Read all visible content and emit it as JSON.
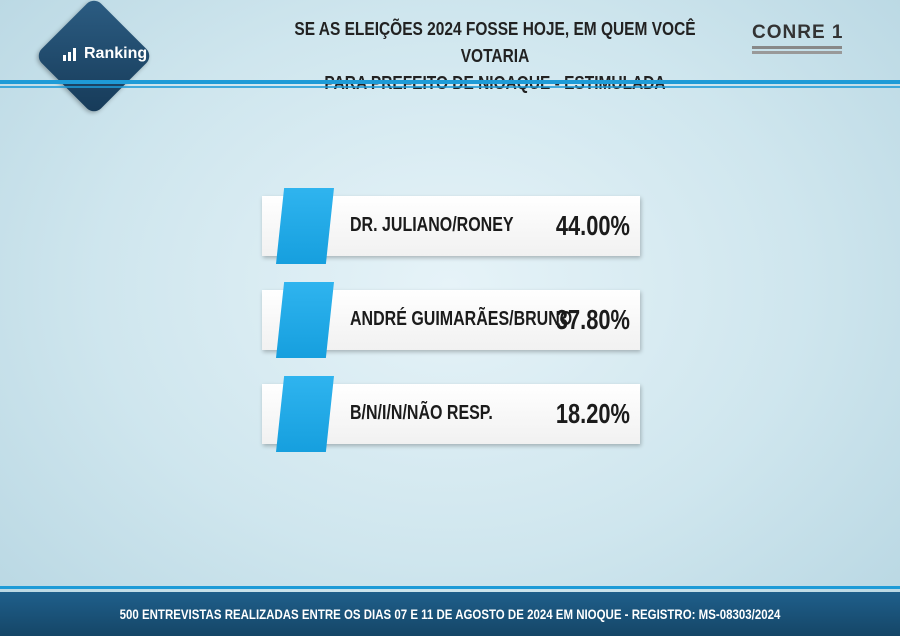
{
  "header": {
    "title_line1": "SE AS ELEIÇÕES 2024 FOSSE HOJE, EM QUEM VOCÊ VOTARIA",
    "title_line2": "PARA PREFEITO DE NIOAQUE - ESTIMULADA",
    "logo_text": "Ranking",
    "conre_text": "CONRE 1"
  },
  "chart_data": {
    "type": "bar",
    "title": "SE AS ELEIÇÕES 2024 FOSSE HOJE, EM QUEM VOCÊ VOTARIA PARA PREFEITO DE NIOAQUE - ESTIMULADA",
    "categories": [
      "DR. JULIANO/RONEY",
      "ANDRÉ GUIMARÃES/BRUNO",
      "B/N/I/N/NÃO RESP."
    ],
    "values": [
      44.0,
      37.8,
      18.2
    ],
    "value_labels": [
      "44.00%",
      "37.80%",
      "18.20%"
    ]
  },
  "colors": {
    "accent": "#1e9bd7",
    "footer": "#1f5f8b"
  },
  "footer": {
    "text": "500 ENTREVISTAS REALIZADAS ENTRE OS DIAS 07 E 11 DE AGOSTO DE 2024 EM NIOQUE - REGISTRO: MS-08303/2024"
  }
}
